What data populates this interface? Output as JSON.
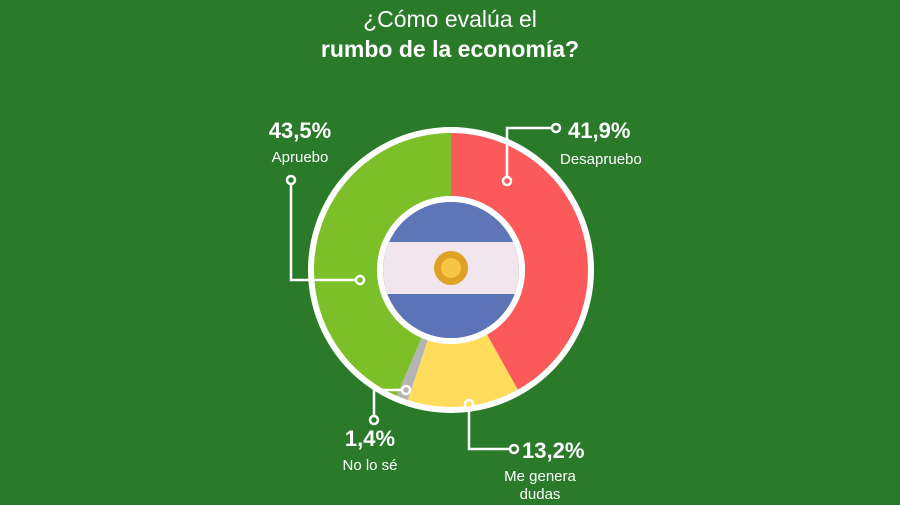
{
  "chart_data": {
    "type": "pie",
    "title_line1": "¿Cómo evalúa el",
    "title_line2": "rumbo de la economía?",
    "slices": [
      {
        "label": "Desapruebo",
        "label_lines": [
          "Desapruebo"
        ],
        "value": 41.9,
        "value_label": "41,9%",
        "color": "#fc5a5a"
      },
      {
        "label": "Me genera dudas",
        "label_lines": [
          "Me genera",
          "dudas"
        ],
        "value": 13.2,
        "value_label": "13,2%",
        "color": "#ffdc5c"
      },
      {
        "label": "No lo sé",
        "label_lines": [
          "No lo sé"
        ],
        "value": 1.4,
        "value_label": "1,4%",
        "color": "#b4b4b4"
      },
      {
        "label": "Apruebo",
        "label_lines": [
          "Apruebo"
        ],
        "value": 43.5,
        "value_label": "43,5%",
        "color": "#7dbf28"
      }
    ],
    "legend": "none"
  }
}
